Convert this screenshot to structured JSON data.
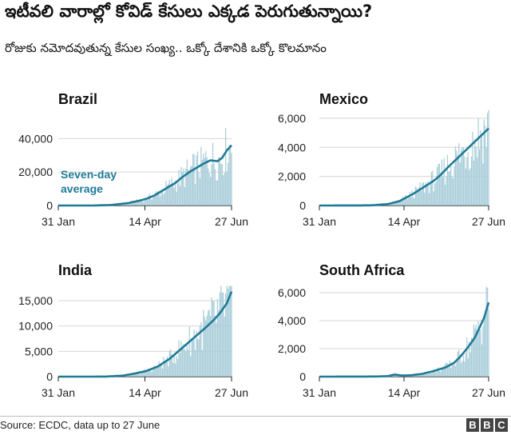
{
  "header": {
    "title": "ఇటీవలి వారాల్లో కోవిడ్ కేసులు ఎక్కడ పెరుగుతున్నాయి?",
    "subtitle": "రోజుకు నమోదవుతున్న కేసుల సంఖ్య.. ఒక్కో దేశానికి ఒక్కో కొలమానం"
  },
  "footer": {
    "source": "Source: ECDC, data up to 27 June",
    "logo_letters": [
      "B",
      "B",
      "C"
    ]
  },
  "colors": {
    "bar": "#a9cdd9",
    "line": "#1f7a96",
    "grid": "#d6d6d6",
    "axis": "#222222"
  },
  "chart_data": [
    {
      "type": "line",
      "title": "Brazil",
      "annotation": "Seven-day\naverage",
      "x_ticks": [
        "31 Jan",
        "14 Apr",
        "27 Jun"
      ],
      "x_range": [
        0,
        148
      ],
      "y_ticks": [
        0,
        20000,
        40000
      ],
      "y_tick_labels": [
        "0",
        "20,000",
        "40,000"
      ],
      "ylim": [
        0,
        55000
      ],
      "bars": "daily reported cases",
      "series": [
        {
          "values_x": [
            0,
            30,
            45,
            60,
            70,
            76,
            82,
            88,
            94,
            100,
            106,
            112,
            118,
            124,
            130,
            136,
            140,
            144,
            148
          ],
          "values_y": [
            0,
            10,
            300,
            1500,
            3000,
            4200,
            6000,
            8500,
            11000,
            13500,
            17000,
            20000,
            22500,
            25000,
            27000,
            26500,
            28500,
            33000,
            36000
          ]
        }
      ]
    },
    {
      "type": "line",
      "title": "Mexico",
      "x_ticks": [
        "31 Jan",
        "14 Apr",
        "27 Jun"
      ],
      "x_range": [
        0,
        148
      ],
      "y_ticks": [
        0,
        2000,
        4000,
        6000
      ],
      "y_tick_labels": [
        "0",
        "2,000",
        "4,000",
        "6,000"
      ],
      "ylim": [
        0,
        6600
      ],
      "series": [
        {
          "values_x": [
            0,
            45,
            60,
            70,
            76,
            82,
            88,
            94,
            100,
            106,
            112,
            118,
            124,
            130,
            136,
            142,
            148
          ],
          "values_y": [
            0,
            10,
            100,
            300,
            550,
            800,
            1100,
            1400,
            1700,
            2100,
            2600,
            3050,
            3500,
            3950,
            4400,
            4850,
            5300
          ]
        }
      ]
    },
    {
      "type": "line",
      "title": "India",
      "x_ticks": [
        "31 Jan",
        "14 Apr",
        "27 Jun"
      ],
      "x_range": [
        0,
        148
      ],
      "y_ticks": [
        0,
        5000,
        10000,
        15000
      ],
      "y_tick_labels": [
        "0",
        "5,000",
        "10,000",
        "15,000"
      ],
      "ylim": [
        0,
        18000
      ],
      "series": [
        {
          "values_x": [
            0,
            40,
            55,
            65,
            75,
            85,
            95,
            105,
            115,
            125,
            132,
            138,
            144,
            148
          ],
          "values_y": [
            0,
            10,
            200,
            600,
            1100,
            2000,
            3500,
            5500,
            7500,
            9500,
            11000,
            12500,
            14500,
            16800
          ]
        }
      ]
    },
    {
      "type": "line",
      "title": "South Africa",
      "x_ticks": [
        "31 Jan",
        "14 Apr",
        "27 Jun"
      ],
      "x_range": [
        0,
        148
      ],
      "y_ticks": [
        0,
        2000,
        4000,
        6000
      ],
      "y_tick_labels": [
        "0",
        "2,000",
        "4,000",
        "6,000"
      ],
      "ylim": [
        0,
        6800
      ],
      "series": [
        {
          "values_x": [
            0,
            50,
            60,
            66,
            72,
            80,
            90,
            100,
            110,
            118,
            124,
            130,
            136,
            140,
            144,
            148
          ],
          "values_y": [
            0,
            10,
            40,
            150,
            80,
            100,
            200,
            400,
            650,
            1000,
            1500,
            2100,
            2800,
            3500,
            4200,
            5300
          ]
        }
      ]
    }
  ]
}
